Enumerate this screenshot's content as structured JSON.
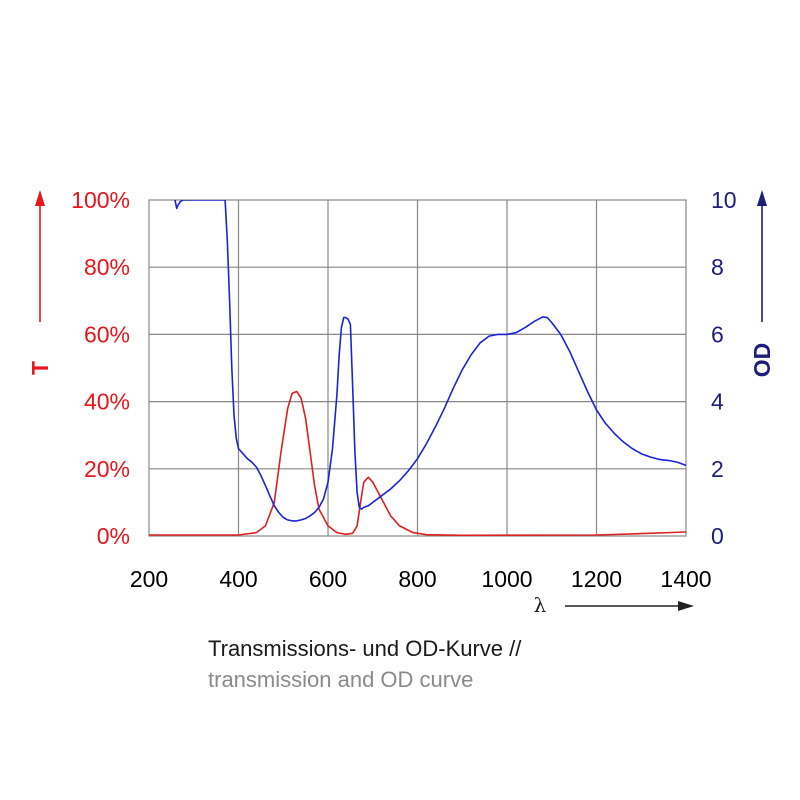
{
  "chart_data": {
    "type": "line",
    "x_range": [
      200,
      1400
    ],
    "x_ticks": [
      "200",
      "400",
      "600",
      "800",
      "1000",
      "1200",
      "1400"
    ],
    "x_label": "λ",
    "y_left": {
      "label": "T",
      "range": [
        0,
        100
      ],
      "ticks": [
        "0%",
        "20%",
        "40%",
        "60%",
        "80%",
        "100%"
      ],
      "color": "#e8151b"
    },
    "y_right": {
      "label": "OD",
      "range": [
        0,
        10
      ],
      "ticks": [
        "0",
        "2",
        "4",
        "6",
        "8",
        "10"
      ],
      "color": "#1d1d7a"
    },
    "grid": true,
    "series": [
      {
        "axis": "left",
        "color": "#dd2020",
        "x": [
          200,
          400,
          440,
          460,
          480,
          495,
          510,
          520,
          530,
          540,
          550,
          560,
          570,
          580,
          600,
          620,
          640,
          655,
          665,
          675,
          680,
          690,
          700,
          720,
          740,
          760,
          790,
          820,
          900,
          1200,
          1300,
          1400
        ],
        "values": [
          0.3,
          0.3,
          1,
          3,
          10,
          25,
          38,
          42.5,
          43,
          41,
          35,
          25,
          15,
          8,
          3,
          1,
          0.5,
          0.8,
          3,
          12,
          16,
          17.5,
          16,
          11,
          6,
          3,
          1,
          0.4,
          0.2,
          0.3,
          0.7,
          1.2
        ]
      },
      {
        "axis": "right",
        "color": "#1a23d6",
        "x": [
          258,
          262,
          265,
          270,
          276,
          370,
          375,
          380,
          385,
          390,
          395,
          400,
          410,
          420,
          430,
          440,
          450,
          460,
          470,
          480,
          490,
          500,
          510,
          520,
          530,
          540,
          550,
          560,
          570,
          580,
          590,
          600,
          610,
          620,
          625,
          630,
          635,
          640,
          645,
          650,
          655,
          660,
          665,
          670,
          675,
          680,
          690,
          700,
          720,
          740,
          760,
          780,
          800,
          820,
          840,
          860,
          880,
          900,
          920,
          940,
          960,
          980,
          1000,
          1020,
          1040,
          1060,
          1080,
          1090,
          1100,
          1120,
          1140,
          1160,
          1180,
          1200,
          1220,
          1240,
          1260,
          1280,
          1300,
          1320,
          1340,
          1360,
          1380,
          1400
        ],
        "values": [
          10,
          9.75,
          9.85,
          9.95,
          10,
          10,
          8.8,
          7,
          5,
          3.6,
          2.9,
          2.6,
          2.45,
          2.3,
          2.2,
          2.05,
          1.8,
          1.5,
          1.2,
          0.9,
          0.7,
          0.55,
          0.48,
          0.45,
          0.45,
          0.48,
          0.52,
          0.6,
          0.7,
          0.85,
          1.1,
          1.6,
          2.6,
          4.2,
          5.4,
          6.2,
          6.5,
          6.5,
          6.45,
          6.3,
          4.5,
          2.5,
          1.3,
          0.85,
          0.8,
          0.85,
          0.9,
          1.0,
          1.2,
          1.4,
          1.65,
          1.95,
          2.3,
          2.75,
          3.25,
          3.8,
          4.4,
          4.95,
          5.4,
          5.75,
          5.95,
          6.0,
          6.0,
          6.05,
          6.2,
          6.38,
          6.52,
          6.5,
          6.35,
          6.0,
          5.5,
          4.9,
          4.3,
          3.75,
          3.35,
          3.05,
          2.8,
          2.6,
          2.45,
          2.35,
          2.28,
          2.25,
          2.2,
          2.1
        ]
      }
    ]
  },
  "caption": {
    "line1": "Transmissions- und OD-Kurve //",
    "line2": "transmission and OD curve"
  }
}
